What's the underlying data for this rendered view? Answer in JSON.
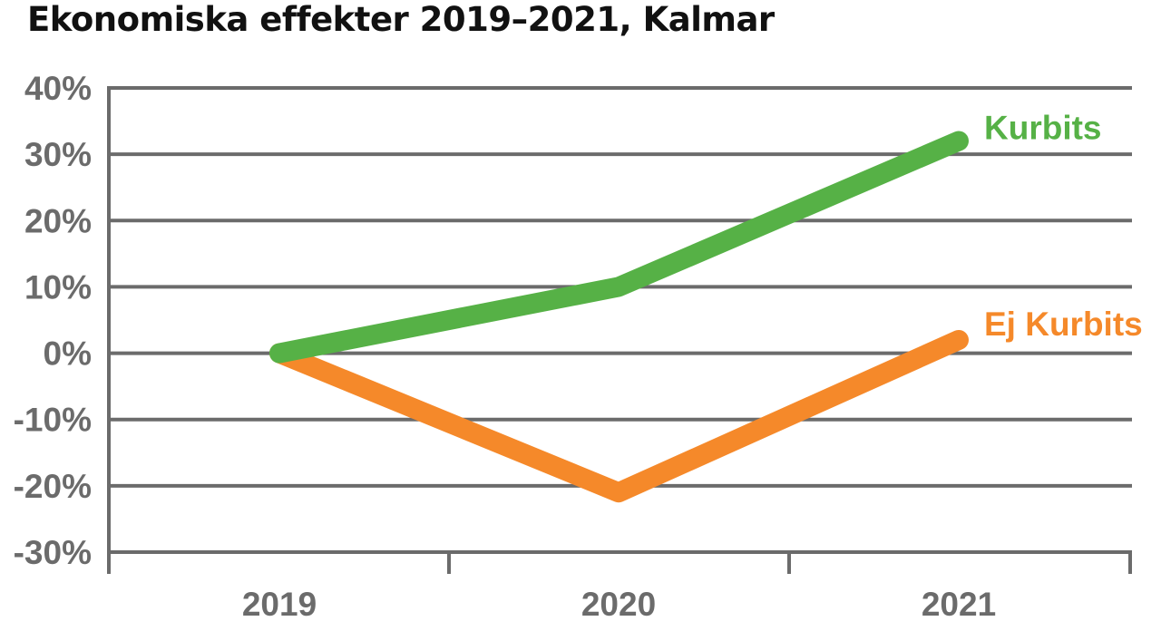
{
  "chart_data": {
    "type": "line",
    "title": "Ekonomiska effekter 2019–2021, Kalmar",
    "categories": [
      "2019",
      "2020",
      "2021"
    ],
    "ylim": [
      -30,
      40
    ],
    "yticks": [
      40,
      30,
      20,
      10,
      0,
      -10,
      -20,
      -30
    ],
    "ytick_labels": [
      "40%",
      "30%",
      "20%",
      "10%",
      "0%",
      "-10%",
      "-20%",
      "-30%"
    ],
    "grid": true,
    "series": [
      {
        "name": "Kurbits",
        "values": [
          0,
          10,
          32
        ],
        "color": "#56b146"
      },
      {
        "name": "Ej Kurbits",
        "values": [
          0,
          -21,
          2
        ],
        "color": "#f5892a"
      }
    ],
    "axis_color": "#6b6b6b",
    "grid_color": "#6b6b6b"
  }
}
